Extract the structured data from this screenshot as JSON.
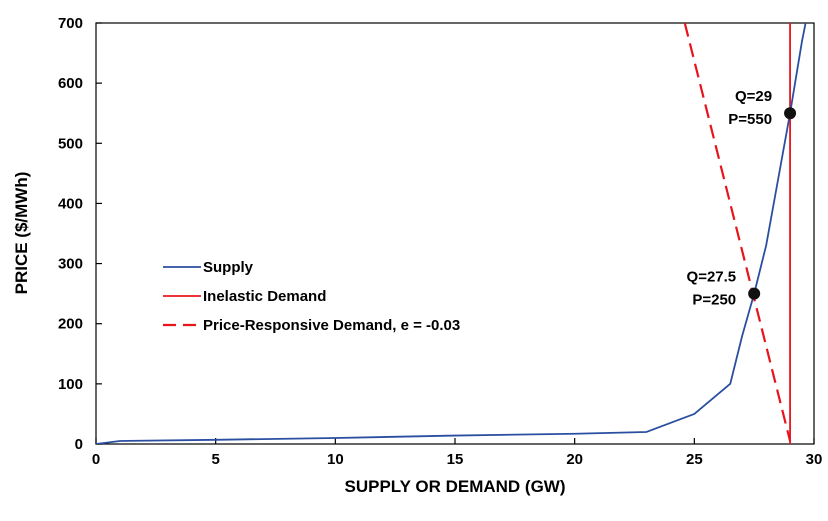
{
  "chart_data": {
    "type": "line",
    "xlabel": "SUPPLY OR DEMAND (GW)",
    "ylabel": "PRICE ($/MWh)",
    "xlim": [
      0,
      30
    ],
    "ylim": [
      0,
      700
    ],
    "xticks": [
      0,
      5,
      10,
      15,
      20,
      25,
      30
    ],
    "yticks": [
      0,
      100,
      200,
      300,
      400,
      500,
      600,
      700
    ],
    "grid": false,
    "legend_position": "middle-left",
    "series": [
      {
        "name": "Supply",
        "color": "#2b4fa0",
        "style": "solid",
        "points": [
          [
            0,
            0
          ],
          [
            1,
            5
          ],
          [
            5,
            7
          ],
          [
            10,
            10
          ],
          [
            15,
            14
          ],
          [
            20,
            17
          ],
          [
            23,
            20
          ],
          [
            25,
            50
          ],
          [
            26.5,
            100
          ],
          [
            27,
            180
          ],
          [
            27.5,
            250
          ],
          [
            28,
            330
          ],
          [
            28.5,
            440
          ],
          [
            29,
            550
          ],
          [
            29.5,
            670
          ],
          [
            29.65,
            700
          ]
        ]
      },
      {
        "name": "Inelastic Demand",
        "color": "#e8141c",
        "style": "solid",
        "points": [
          [
            29,
            0
          ],
          [
            29,
            700
          ]
        ]
      },
      {
        "name": "Price-Responsive Demand, e = -0.03",
        "color": "#e8141c",
        "style": "dashed",
        "points": [
          [
            24.6,
            700
          ],
          [
            29,
            5
          ]
        ]
      }
    ],
    "markers": [
      {
        "x": 27.5,
        "y": 250,
        "label_line1": "Q=27.5",
        "label_line2": "P=250"
      },
      {
        "x": 29,
        "y": 550,
        "label_line1": "Q=29",
        "label_line2": "P=550"
      }
    ]
  }
}
